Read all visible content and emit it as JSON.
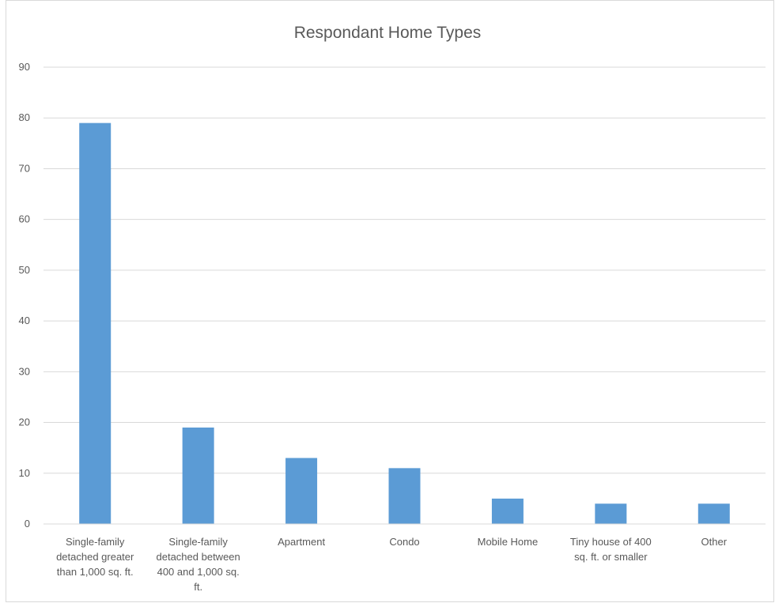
{
  "chart_data": {
    "type": "bar",
    "title": "Respondant Home Types",
    "xlabel": "",
    "ylabel": "",
    "categories": [
      "Single-family detached greater than 1,000 sq. ft.",
      "Single-family detached between 400 and 1,000 sq. ft.",
      "Apartment",
      "Condo",
      "Mobile Home",
      "Tiny house of 400 sq. ft. or smaller",
      "Other"
    ],
    "category_label_lines": [
      [
        "Single-family",
        "detached greater",
        "than 1,000 sq. ft."
      ],
      [
        "Single-family",
        "detached between",
        "400 and 1,000 sq.",
        "ft."
      ],
      [
        "Apartment"
      ],
      [
        "Condo"
      ],
      [
        "Mobile Home"
      ],
      [
        "Tiny house of 400",
        "sq. ft. or smaller"
      ],
      [
        "Other"
      ]
    ],
    "values": [
      79,
      19,
      13,
      11,
      5,
      4,
      4
    ],
    "ylim": [
      0,
      90
    ],
    "yticks": [
      0,
      10,
      20,
      30,
      40,
      50,
      60,
      70,
      80,
      90
    ],
    "grid": true,
    "legend": "none",
    "bar_color": "#5b9bd5",
    "grid_color": "#d9d9d9",
    "text_color": "#595959"
  }
}
